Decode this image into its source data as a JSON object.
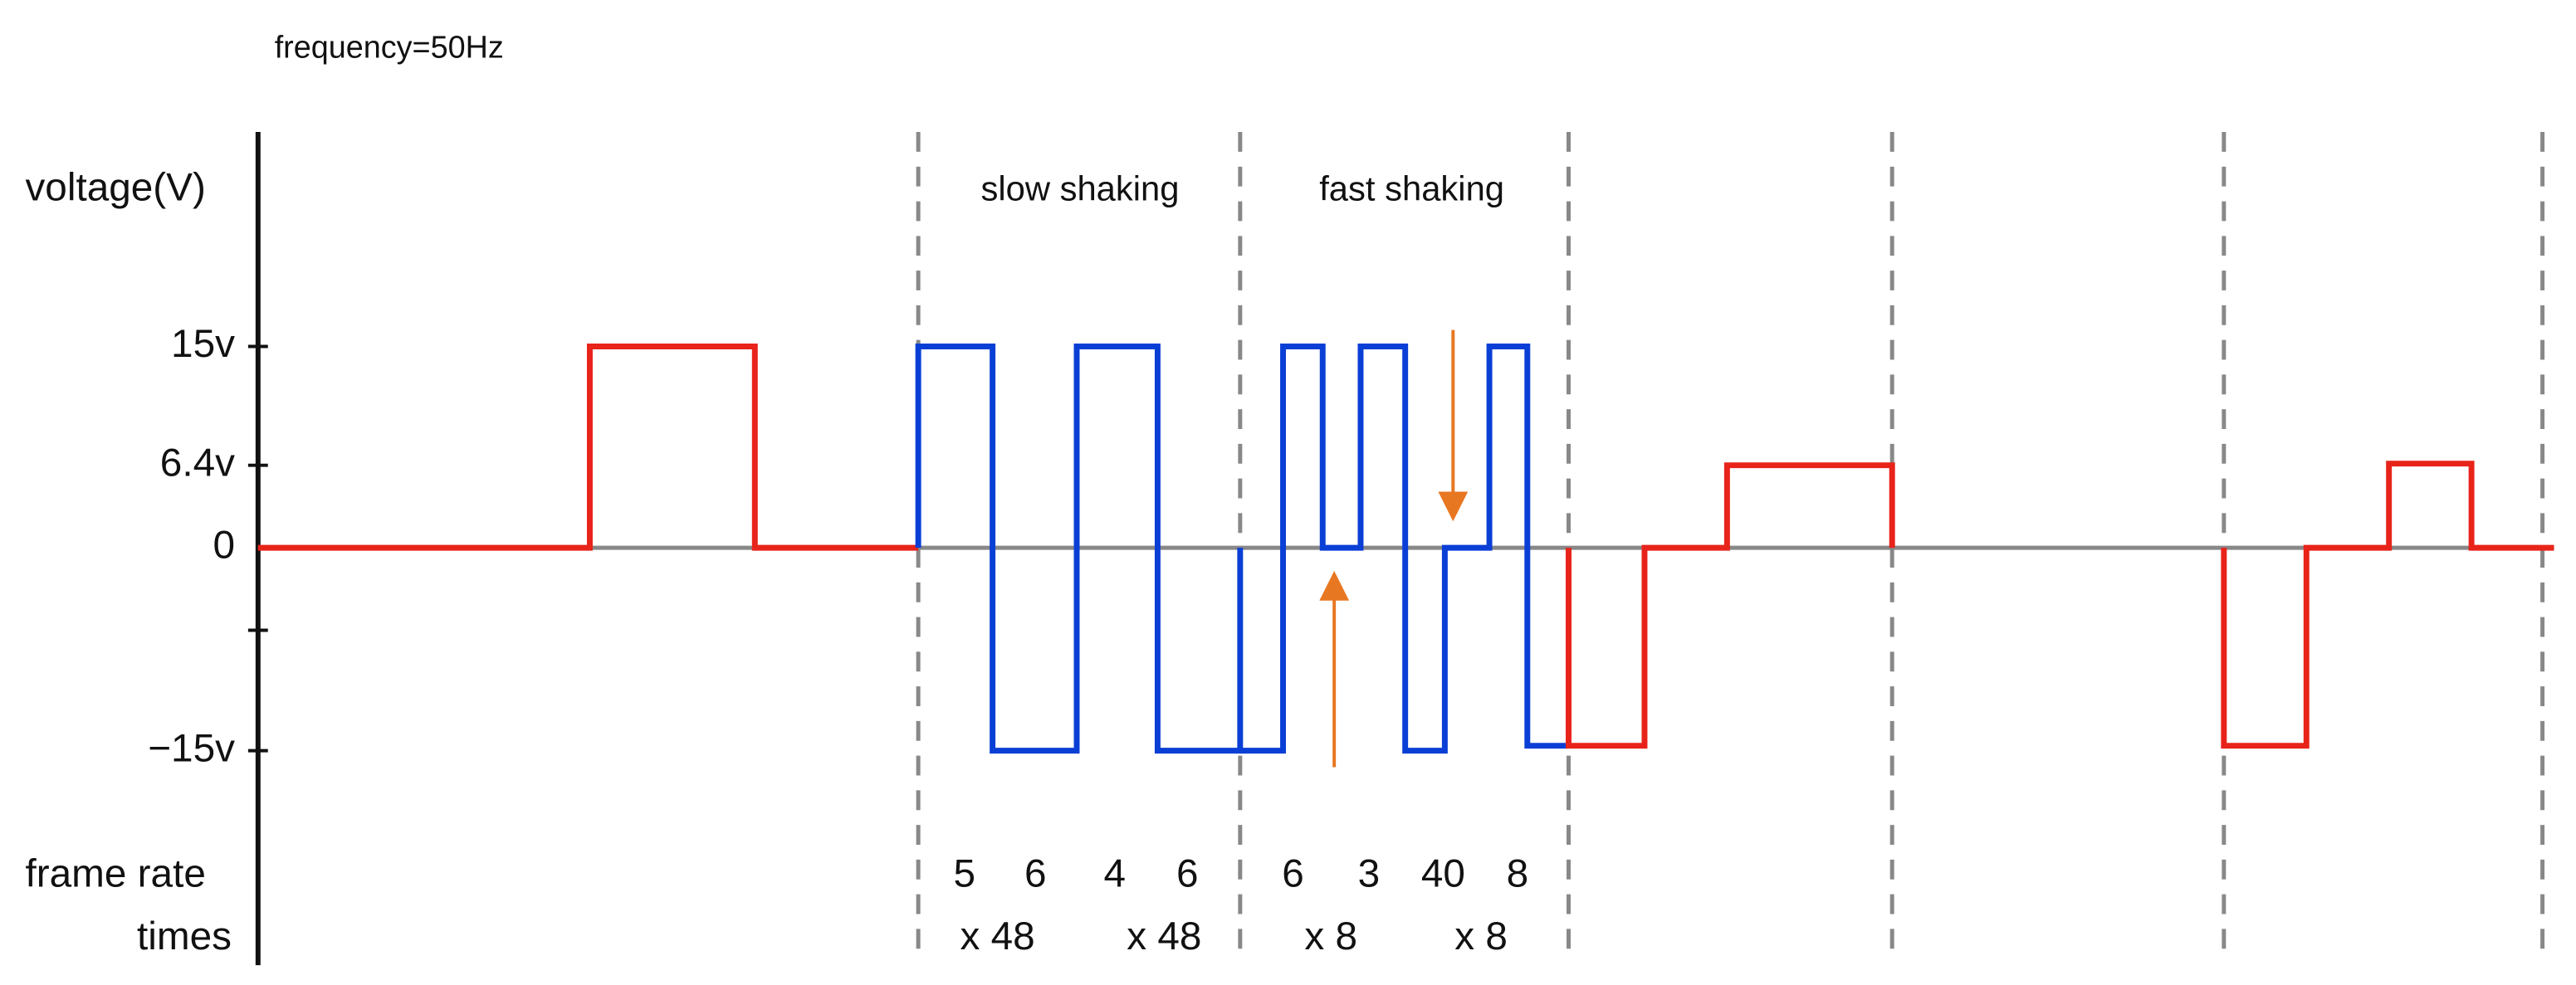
{
  "header": {
    "frequency": "frequency=50Hz"
  },
  "axis": {
    "label": "voltage(V)",
    "ticks": [
      "15v",
      "6.4v",
      "0",
      "−15v"
    ]
  },
  "phases": [
    {
      "label": "slow shaking",
      "frame_rates": [
        "5",
        "6",
        "4",
        "6"
      ],
      "times": [
        "x 48",
        "x 48"
      ]
    },
    {
      "label": "fast shaking",
      "frame_rates": [
        "6",
        "3",
        "40",
        "8"
      ],
      "times": [
        "x 8",
        "x 8"
      ]
    }
  ],
  "rows": {
    "frame_rate": "frame rate",
    "times": "times"
  }
}
